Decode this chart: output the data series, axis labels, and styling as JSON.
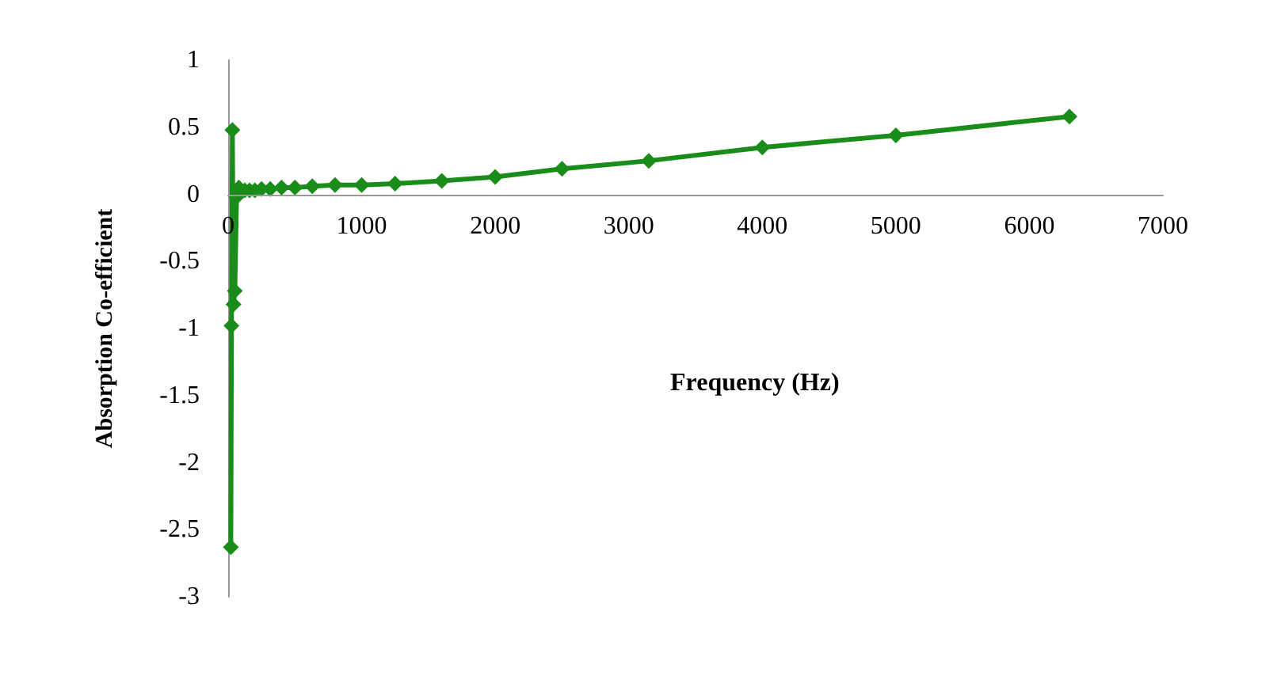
{
  "chart_data": {
    "type": "line",
    "xlabel": "Frequency (Hz)",
    "ylabel": "Absorption Co-efficient",
    "x": [
      20,
      25,
      31.5,
      40,
      50,
      63,
      80,
      100,
      125,
      160,
      200,
      250,
      315,
      400,
      500,
      630,
      800,
      1000,
      1250,
      1600,
      2000,
      2500,
      3150,
      4000,
      5000,
      6300
    ],
    "series": [
      {
        "color": "#1a8c1a",
        "values": [
          -2.63,
          -0.98,
          0.48,
          -0.82,
          -0.72,
          -0.02,
          0.05,
          0.02,
          0.03,
          0.03,
          0.03,
          0.04,
          0.04,
          0.05,
          0.05,
          0.06,
          0.07,
          0.07,
          0.08,
          0.1,
          0.13,
          0.19,
          0.25,
          0.35,
          0.44,
          0.58
        ]
      }
    ],
    "xlim": [
      0,
      7000
    ],
    "xticks": [
      0,
      1000,
      2000,
      3000,
      4000,
      5000,
      6000,
      7000
    ],
    "ylim": [
      -3,
      1
    ],
    "yticks": [
      -3,
      -2.5,
      -2,
      -1.5,
      -1,
      -0.5,
      0,
      0.5,
      1
    ],
    "grid": false,
    "marker": "diamond",
    "line_style": "solid"
  }
}
